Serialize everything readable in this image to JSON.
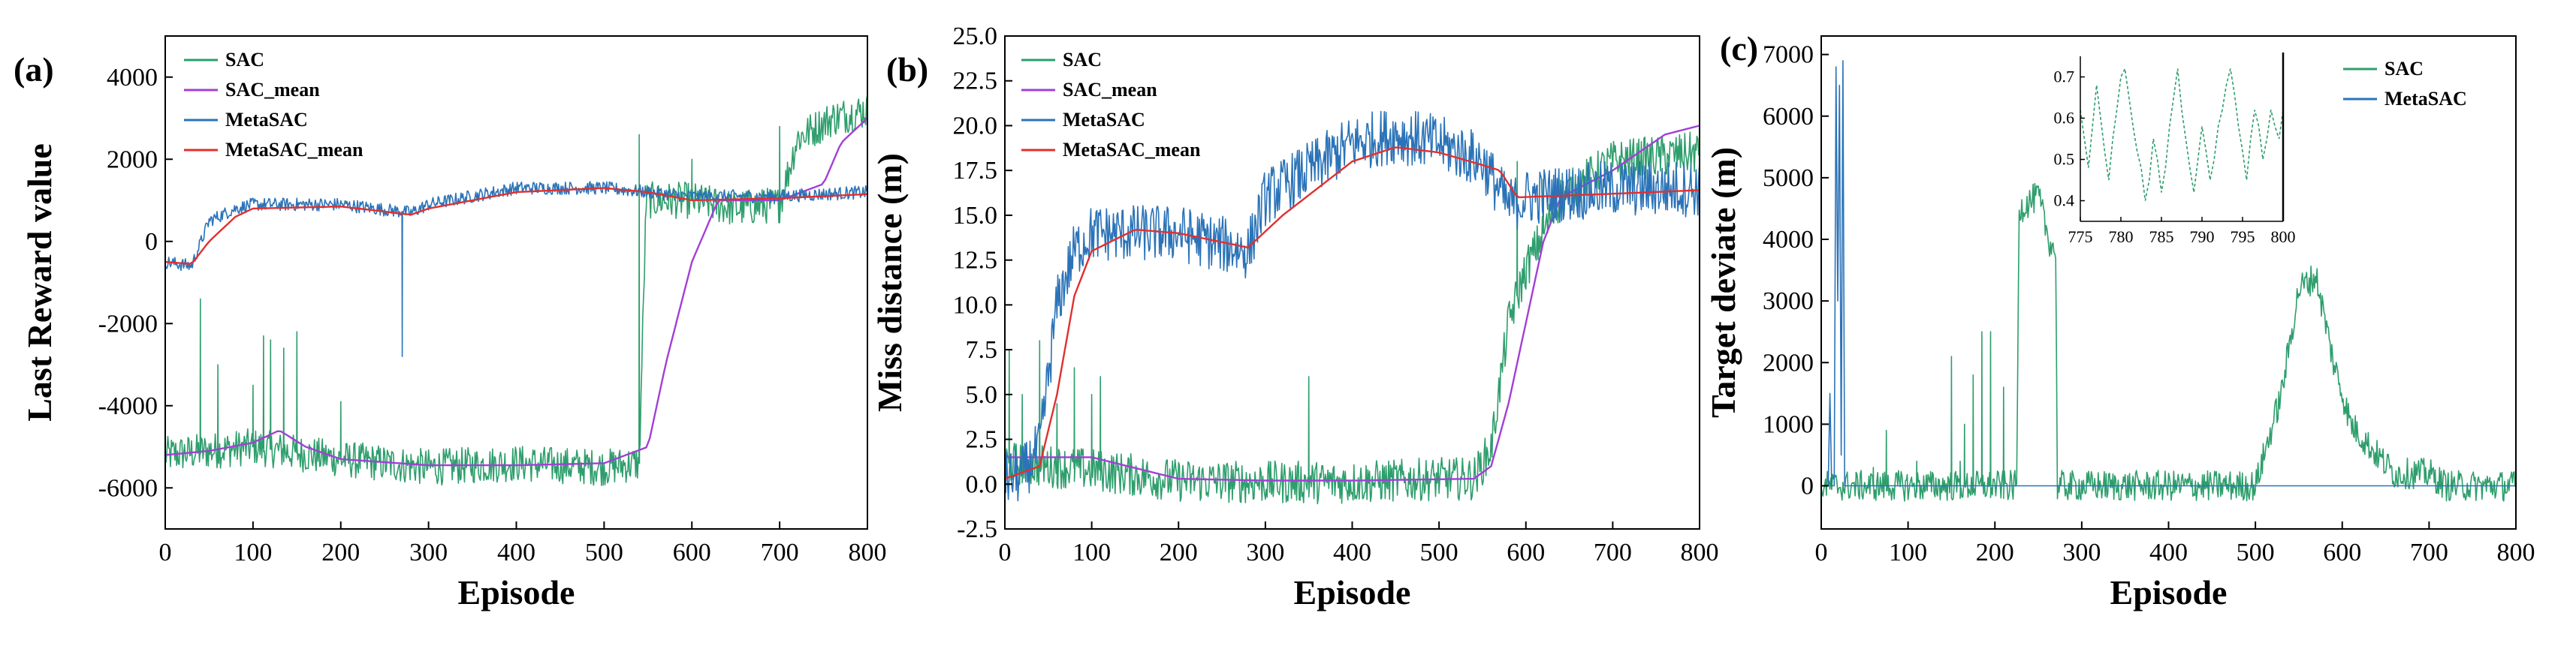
{
  "colors": {
    "sac": "#2e9e6c",
    "sac_mean": "#a23fd6",
    "metasac": "#2a73b8",
    "metasac_mean": "#e03030"
  },
  "chart_data": [
    {
      "panel": "(a)",
      "type": "line",
      "xlabel": "Episode",
      "ylabel": "Last Reward value",
      "xlim": [
        0,
        800
      ],
      "ylim": [
        -7000,
        5000
      ],
      "xticks": [
        "0",
        "100",
        "200",
        "300",
        "400",
        "500",
        "600",
        "700",
        "800"
      ],
      "yticks": [
        "-6000",
        "-4000",
        "-2000",
        "0",
        "2000",
        "4000"
      ],
      "legend": [
        "SAC",
        "SAC_mean",
        "MetaSAC",
        "MetaSAC_mean"
      ],
      "legend_position": "top-left",
      "series": [
        {
          "name": "SAC",
          "noise": 450,
          "points": [
            [
              0,
              -5200
            ],
            [
              100,
              -5000
            ],
            [
              200,
              -5300
            ],
            [
              300,
              -5500
            ],
            [
              400,
              -5400
            ],
            [
              500,
              -5500
            ],
            [
              540,
              -5400
            ],
            [
              548,
              1000
            ],
            [
              600,
              1000
            ],
            [
              650,
              800
            ],
            [
              700,
              900
            ],
            [
              720,
              2500
            ],
            [
              760,
              3000
            ],
            [
              800,
              3200
            ]
          ],
          "spikes": [
            [
              40,
              -1400
            ],
            [
              60,
              -3000
            ],
            [
              100,
              -3500
            ],
            [
              112,
              -2300
            ],
            [
              120,
              -2400
            ],
            [
              135,
              -2600
            ],
            [
              150,
              -2200
            ],
            [
              200,
              -3900
            ],
            [
              540,
              2600
            ],
            [
              600,
              2000
            ],
            [
              700,
              2800
            ]
          ]
        },
        {
          "name": "SAC_mean",
          "points": [
            [
              0,
              -5200
            ],
            [
              50,
              -5100
            ],
            [
              100,
              -4900
            ],
            [
              130,
              -4600
            ],
            [
              160,
              -5000
            ],
            [
              200,
              -5300
            ],
            [
              300,
              -5450
            ],
            [
              400,
              -5450
            ],
            [
              500,
              -5400
            ],
            [
              550,
              -5000
            ],
            [
              570,
              -3000
            ],
            [
              600,
              -500
            ],
            [
              630,
              1000
            ],
            [
              700,
              1000
            ],
            [
              750,
              1400
            ],
            [
              770,
              2400
            ],
            [
              800,
              3000
            ]
          ]
        },
        {
          "name": "MetaSAC",
          "noise": 160,
          "points": [
            [
              0,
              -500
            ],
            [
              30,
              -600
            ],
            [
              50,
              500
            ],
            [
              80,
              800
            ],
            [
              100,
              900
            ],
            [
              200,
              900
            ],
            [
              280,
              700
            ],
            [
              300,
              900
            ],
            [
              400,
              1300
            ],
            [
              500,
              1300
            ],
            [
              550,
              1200
            ],
            [
              600,
              1100
            ],
            [
              700,
              1100
            ],
            [
              800,
              1200
            ]
          ],
          "spikes": [
            [
              270,
              -2800
            ]
          ]
        },
        {
          "name": "MetaSAC_mean",
          "points": [
            [
              0,
              -500
            ],
            [
              30,
              -550
            ],
            [
              50,
              0
            ],
            [
              80,
              600
            ],
            [
              100,
              800
            ],
            [
              200,
              850
            ],
            [
              280,
              650
            ],
            [
              300,
              800
            ],
            [
              400,
              1200
            ],
            [
              500,
              1300
            ],
            [
              550,
              1200
            ],
            [
              600,
              1000
            ],
            [
              700,
              1050
            ],
            [
              800,
              1150
            ]
          ]
        }
      ]
    },
    {
      "panel": "(b)",
      "type": "line",
      "xlabel": "Episode",
      "ylabel": "Miss distance (m)",
      "xlim": [
        0,
        800
      ],
      "ylim": [
        -2.5,
        25
      ],
      "xticks": [
        "0",
        "100",
        "200",
        "300",
        "400",
        "500",
        "600",
        "700",
        "800"
      ],
      "yticks": [
        "-2.5",
        "0.0",
        "2.5",
        "5.0",
        "7.5",
        "10.0",
        "12.5",
        "15.0",
        "17.5",
        "20.0",
        "22.5",
        "25.0"
      ],
      "legend": [
        "SAC",
        "SAC_mean",
        "MetaSAC",
        "MetaSAC_mean"
      ],
      "legend_position": "top-left",
      "series": [
        {
          "name": "SAC",
          "noise": 1.2,
          "points": [
            [
              0,
              1.2
            ],
            [
              50,
              1.0
            ],
            [
              100,
              0.8
            ],
            [
              150,
              0.5
            ],
            [
              200,
              0.2
            ],
            [
              300,
              0.1
            ],
            [
              400,
              0.1
            ],
            [
              500,
              0.3
            ],
            [
              540,
              0.3
            ],
            [
              560,
              2.0
            ],
            [
              580,
              9.0
            ],
            [
              600,
              12.0
            ],
            [
              640,
              16.0
            ],
            [
              700,
              18.0
            ],
            [
              800,
              18.5
            ]
          ],
          "spikes": [
            [
              5,
              7.5
            ],
            [
              20,
              5.0
            ],
            [
              40,
              8.0
            ],
            [
              60,
              4.5
            ],
            [
              80,
              6.5
            ],
            [
              100,
              5.0
            ],
            [
              110,
              6.0
            ],
            [
              350,
              6.0
            ],
            [
              590,
              18.0
            ],
            [
              620,
              17.0
            ]
          ]
        },
        {
          "name": "SAC_mean",
          "points": [
            [
              0,
              1.5
            ],
            [
              50,
              1.5
            ],
            [
              100,
              1.5
            ],
            [
              150,
              0.9
            ],
            [
              200,
              0.3
            ],
            [
              300,
              0.2
            ],
            [
              400,
              0.2
            ],
            [
              540,
              0.3
            ],
            [
              560,
              1.0
            ],
            [
              580,
              4.5
            ],
            [
              600,
              9.0
            ],
            [
              620,
              13.5
            ],
            [
              640,
              16.0
            ],
            [
              700,
              17.5
            ],
            [
              760,
              19.5
            ],
            [
              800,
              20.0
            ]
          ]
        },
        {
          "name": "MetaSAC",
          "noise": 1.6,
          "points": [
            [
              0,
              0.3
            ],
            [
              20,
              0.5
            ],
            [
              40,
              2.0
            ],
            [
              60,
              10.0
            ],
            [
              80,
              13.0
            ],
            [
              100,
              14.0
            ],
            [
              200,
              14.0
            ],
            [
              280,
              13.0
            ],
            [
              300,
              16.0
            ],
            [
              400,
              19.0
            ],
            [
              450,
              19.5
            ],
            [
              500,
              19.0
            ],
            [
              550,
              18.0
            ],
            [
              580,
              15.5
            ],
            [
              600,
              16.0
            ],
            [
              700,
              16.5
            ],
            [
              800,
              16.5
            ]
          ]
        },
        {
          "name": "MetaSAC_mean",
          "points": [
            [
              0,
              0.3
            ],
            [
              40,
              1.0
            ],
            [
              60,
              5.0
            ],
            [
              80,
              10.5
            ],
            [
              100,
              13.0
            ],
            [
              150,
              14.2
            ],
            [
              200,
              14.0
            ],
            [
              280,
              13.2
            ],
            [
              320,
              15.0
            ],
            [
              400,
              18.0
            ],
            [
              450,
              18.8
            ],
            [
              500,
              18.5
            ],
            [
              550,
              17.8
            ],
            [
              570,
              17.5
            ],
            [
              590,
              16.0
            ],
            [
              700,
              16.2
            ],
            [
              800,
              16.4
            ]
          ]
        }
      ]
    },
    {
      "panel": "(c)",
      "type": "line",
      "xlabel": "Episode",
      "ylabel": "Target deviate (m)",
      "xlim": [
        0,
        800
      ],
      "ylim": [
        -700,
        7300
      ],
      "xticks": [
        "0",
        "100",
        "200",
        "300",
        "400",
        "500",
        "600",
        "700",
        "800"
      ],
      "yticks": [
        "0",
        "1000",
        "2000",
        "3000",
        "4000",
        "5000",
        "6000",
        "7000"
      ],
      "legend": [
        "SAC",
        "MetaSAC"
      ],
      "legend_position": "top-right",
      "series": [
        {
          "name": "SAC",
          "noise": 250,
          "points": [
            [
              0,
              0
            ],
            [
              225,
              0
            ],
            [
              228,
              4500
            ],
            [
              250,
              4700
            ],
            [
              262,
              4000
            ],
            [
              270,
              3800
            ],
            [
              272,
              0
            ],
            [
              500,
              0
            ],
            [
              510,
              500
            ],
            [
              530,
              1500
            ],
            [
              550,
              3200
            ],
            [
              570,
              3400
            ],
            [
              590,
              2000
            ],
            [
              610,
              1000
            ],
            [
              640,
              500
            ],
            [
              660,
              200
            ],
            [
              700,
              200
            ],
            [
              720,
              0
            ],
            [
              800,
              0
            ]
          ],
          "spikes": [
            [
              40,
              150
            ],
            [
              60,
              300
            ],
            [
              75,
              900
            ],
            [
              110,
              400
            ],
            [
              150,
              2100
            ],
            [
              160,
              400
            ],
            [
              165,
              1000
            ],
            [
              175,
              1800
            ],
            [
              185,
              2500
            ],
            [
              195,
              2500
            ],
            [
              210,
              1600
            ]
          ]
        },
        {
          "name": "MetaSAC",
          "noise": 0,
          "points": [
            [
              0,
              0
            ],
            [
              8,
              0
            ],
            [
              10,
              1500
            ],
            [
              12,
              0
            ],
            [
              15,
              0
            ],
            [
              17,
              6800
            ],
            [
              19,
              3000
            ],
            [
              21,
              6500
            ],
            [
              23,
              500
            ],
            [
              25,
              6900
            ],
            [
              27,
              0
            ],
            [
              800,
              0
            ]
          ]
        }
      ]
    }
  ],
  "inset": {
    "xlim": [
      775,
      800
    ],
    "ylim": [
      0.35,
      0.75
    ],
    "xticks": [
      "775",
      "780",
      "785",
      "790",
      "795",
      "800"
    ],
    "yticks": [
      "0.4",
      "0.5",
      "0.6",
      "0.7"
    ],
    "series_name": "SAC",
    "values": [
      0.62,
      0.55,
      0.48,
      0.58,
      0.68,
      0.6,
      0.52,
      0.45,
      0.55,
      0.62,
      0.7,
      0.72,
      0.65,
      0.58,
      0.52,
      0.48,
      0.4,
      0.45,
      0.55,
      0.5,
      0.42,
      0.48,
      0.58,
      0.65,
      0.72,
      0.62,
      0.55,
      0.48,
      0.42,
      0.5,
      0.58,
      0.52,
      0.45,
      0.5,
      0.58,
      0.62,
      0.68,
      0.72,
      0.66,
      0.58,
      0.52,
      0.45,
      0.55,
      0.62,
      0.58,
      0.5,
      0.55,
      0.62,
      0.58,
      0.55,
      0.62
    ]
  }
}
